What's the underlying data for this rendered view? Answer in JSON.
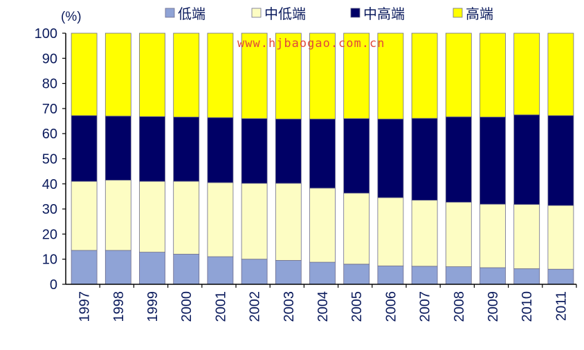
{
  "chart_data": {
    "type": "bar",
    "stacked": true,
    "unit_label": "(%)",
    "watermark": "www.hjbaogao.com.cn",
    "ylim": [
      0,
      100
    ],
    "yticks": [
      0,
      10,
      20,
      30,
      40,
      50,
      60,
      70,
      80,
      90,
      100
    ],
    "categories": [
      "1997",
      "1998",
      "1999",
      "2000",
      "2001",
      "2002",
      "2003",
      "2004",
      "2005",
      "2006",
      "2007",
      "2008",
      "2009",
      "2010",
      "2011"
    ],
    "series": [
      {
        "name": "低端",
        "color": "#8fa3d6",
        "values": [
          13.5,
          13.5,
          12.8,
          12.0,
          11.0,
          10.0,
          9.5,
          8.8,
          8.0,
          7.3,
          7.2,
          7.0,
          6.6,
          6.2,
          6.0
        ]
      },
      {
        "name": "中低端",
        "color": "#fdfdc3",
        "values": [
          27.5,
          28.0,
          28.2,
          29.0,
          29.5,
          30.2,
          30.7,
          29.5,
          28.3,
          27.2,
          26.3,
          25.7,
          25.3,
          25.6,
          25.4
        ]
      },
      {
        "name": "中高端",
        "color": "#000066",
        "values": [
          26.2,
          25.5,
          25.8,
          25.6,
          25.9,
          25.8,
          25.6,
          27.5,
          29.7,
          31.3,
          32.6,
          34.0,
          34.7,
          35.7,
          35.8
        ]
      },
      {
        "name": "高端",
        "color": "#ffff00",
        "values": [
          32.8,
          33.0,
          33.2,
          33.4,
          33.6,
          34.0,
          34.2,
          34.2,
          34.0,
          34.2,
          33.9,
          33.3,
          33.4,
          32.5,
          32.8
        ]
      }
    ]
  }
}
